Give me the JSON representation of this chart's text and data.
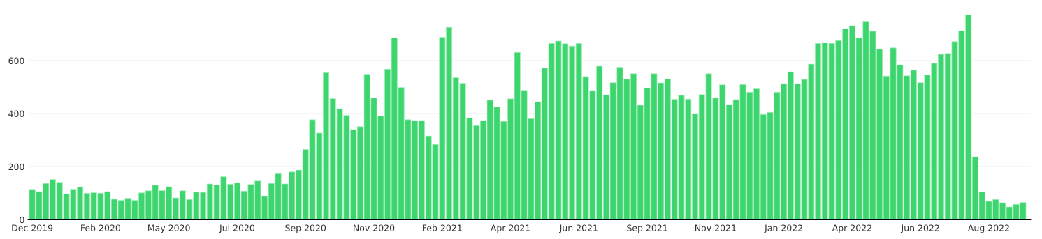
{
  "chart_data": {
    "type": "bar",
    "categories": [
      "Dec 2019",
      null,
      null,
      null,
      null,
      null,
      null,
      null,
      null,
      null,
      "Feb 2020",
      null,
      null,
      null,
      null,
      null,
      null,
      null,
      null,
      null,
      "May 2020",
      null,
      null,
      null,
      null,
      null,
      null,
      null,
      null,
      null,
      "Jul 2020",
      null,
      null,
      null,
      null,
      null,
      null,
      null,
      null,
      null,
      "Sep 2020",
      null,
      null,
      null,
      null,
      null,
      null,
      null,
      null,
      null,
      "Nov 2020",
      null,
      null,
      null,
      null,
      null,
      null,
      null,
      null,
      null,
      "Feb 2021",
      null,
      null,
      null,
      null,
      null,
      null,
      null,
      null,
      null,
      "Apr 2021",
      null,
      null,
      null,
      null,
      null,
      null,
      null,
      null,
      null,
      "Jun 2021",
      null,
      null,
      null,
      null,
      null,
      null,
      null,
      null,
      null,
      "Sep 2021",
      null,
      null,
      null,
      null,
      null,
      null,
      null,
      null,
      null,
      "Nov 2021",
      null,
      null,
      null,
      null,
      null,
      null,
      null,
      null,
      null,
      "Jan 2022",
      null,
      null,
      null,
      null,
      null,
      null,
      null,
      null,
      null,
      "Apr 2022",
      null,
      null,
      null,
      null,
      null,
      null,
      null,
      null,
      null,
      "Jun 2022",
      null,
      null,
      null,
      null,
      null,
      null,
      null,
      null,
      null,
      "Aug 2022",
      null,
      null,
      null,
      null,
      null
    ],
    "values": [
      114,
      106,
      137,
      152,
      141,
      97,
      115,
      123,
      100,
      102,
      100,
      106,
      77,
      73,
      81,
      73,
      101,
      109,
      130,
      110,
      124,
      82,
      109,
      76,
      104,
      103,
      135,
      131,
      162,
      134,
      139,
      108,
      133,
      146,
      88,
      137,
      176,
      135,
      180,
      187,
      265,
      377,
      327,
      555,
      457,
      419,
      394,
      340,
      351,
      549,
      459,
      391,
      568,
      686,
      499,
      377,
      374,
      374,
      316,
      284,
      688,
      726,
      536,
      515,
      384,
      355,
      374,
      451,
      425,
      371,
      456,
      631,
      488,
      381,
      445,
      572,
      665,
      674,
      664,
      655,
      665,
      540,
      487,
      579,
      471,
      517,
      575,
      530,
      551,
      432,
      497,
      551,
      516,
      531,
      454,
      469,
      455,
      400,
      472,
      551,
      459,
      509,
      434,
      453,
      510,
      481,
      494,
      397,
      405,
      481,
      513,
      558,
      513,
      529,
      587,
      665,
      668,
      665,
      676,
      721,
      732,
      686,
      749,
      711,
      643,
      542,
      648,
      584,
      543,
      564,
      517,
      546,
      590,
      624,
      627,
      672,
      713,
      774,
      237,
      105,
      69,
      76,
      64,
      48,
      58,
      65
    ],
    "color": "#3dd56d",
    "ylim": [
      0,
      774
    ],
    "yticks": [
      0,
      200,
      400,
      600
    ],
    "grid": "y"
  }
}
